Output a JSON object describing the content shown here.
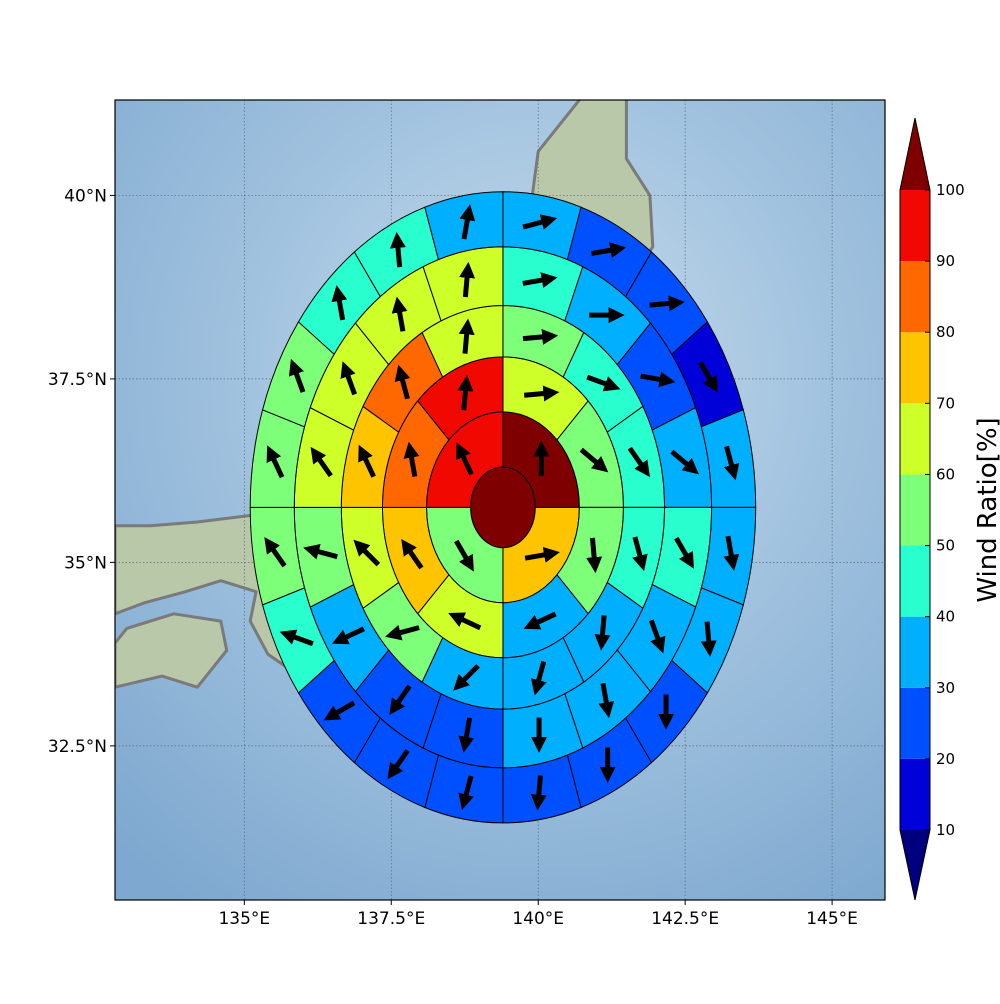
{
  "chart_data": {
    "type": "heatmap",
    "subtype": "polar-sector wind ratio map with direction arrows",
    "map": {
      "xlim": [
        132.8,
        145.9
      ],
      "ylim": [
        30.4,
        41.3
      ],
      "x_ticks": [
        {
          "value": 135,
          "label": "135°E"
        },
        {
          "value": 137.5,
          "label": "137.5°E"
        },
        {
          "value": 140,
          "label": "140°E"
        },
        {
          "value": 142.5,
          "label": "142.5°E"
        },
        {
          "value": 145,
          "label": "145°E"
        }
      ],
      "y_ticks": [
        {
          "value": 40,
          "label": "40°N"
        },
        {
          "value": 37.5,
          "label": "37.5°N"
        },
        {
          "value": 35,
          "label": "35°N"
        },
        {
          "value": 32.5,
          "label": "32.5°N"
        }
      ],
      "grid": true
    },
    "colorbar": {
      "label": "Wind Ratio[%]",
      "ticks": [
        "10",
        "20",
        "30",
        "40",
        "50",
        "60",
        "70",
        "80",
        "90",
        "100"
      ],
      "levels": [
        10,
        20,
        30,
        40,
        50,
        60,
        70,
        80,
        90,
        100
      ],
      "colors": [
        "#0000d8",
        "#0050ff",
        "#00b0ff",
        "#29ffce",
        "#7dff7a",
        "#ceff29",
        "#ffc400",
        "#ff6800",
        "#f10800"
      ],
      "under_color": "#00007f",
      "over_color": "#7f0000",
      "extend": "both"
    },
    "center": {
      "lon": 139.4,
      "lat": 35.75
    },
    "ring_radii_deg": [
      0.55,
      1.3,
      2.05,
      2.75,
      3.55,
      4.3
    ],
    "rings": [
      {
        "sectors": 1,
        "values": [
          105
        ],
        "arrows": [
          null
        ]
      },
      {
        "sectors": 4,
        "values": [
          105,
          75,
          55,
          95
        ],
        "arrows": [
          0,
          80,
          150,
          335
        ]
      },
      {
        "sectors": 8,
        "values": [
          65,
          50,
          55,
          35,
          60,
          75,
          85,
          95
        ],
        "arrows": [
          85,
          130,
          175,
          245,
          295,
          325,
          350,
          5
        ]
      },
      {
        "sectors": 12,
        "values": [
          55,
          45,
          45,
          45,
          35,
          35,
          35,
          55,
          65,
          75,
          85,
          65
        ],
        "arrows": [
          85,
          110,
          145,
          165,
          185,
          195,
          225,
          255,
          315,
          335,
          345,
          5
        ]
      },
      {
        "sectors": 16,
        "values": [
          45,
          35,
          25,
          35,
          45,
          35,
          35,
          35,
          25,
          25,
          35,
          55,
          65,
          65,
          65,
          65
        ],
        "arrows": [
          80,
          90,
          100,
          130,
          150,
          160,
          170,
          180,
          190,
          215,
          245,
          285,
          325,
          340,
          350,
          5
        ]
      },
      {
        "sectors": 20,
        "values": [
          35,
          25,
          25,
          15,
          35,
          35,
          35,
          25,
          25,
          25,
          25,
          25,
          25,
          45,
          55,
          55,
          55,
          45,
          45,
          35
        ],
        "arrows": [
          75,
          80,
          85,
          150,
          165,
          170,
          175,
          180,
          180,
          185,
          195,
          215,
          240,
          290,
          325,
          335,
          340,
          350,
          355,
          10
        ]
      }
    ]
  },
  "colors": {
    "ocean": "#8fb6d8",
    "land": "#b8c8a8",
    "coastline": "#7a7a7a",
    "grid": "#5a6a7a"
  }
}
